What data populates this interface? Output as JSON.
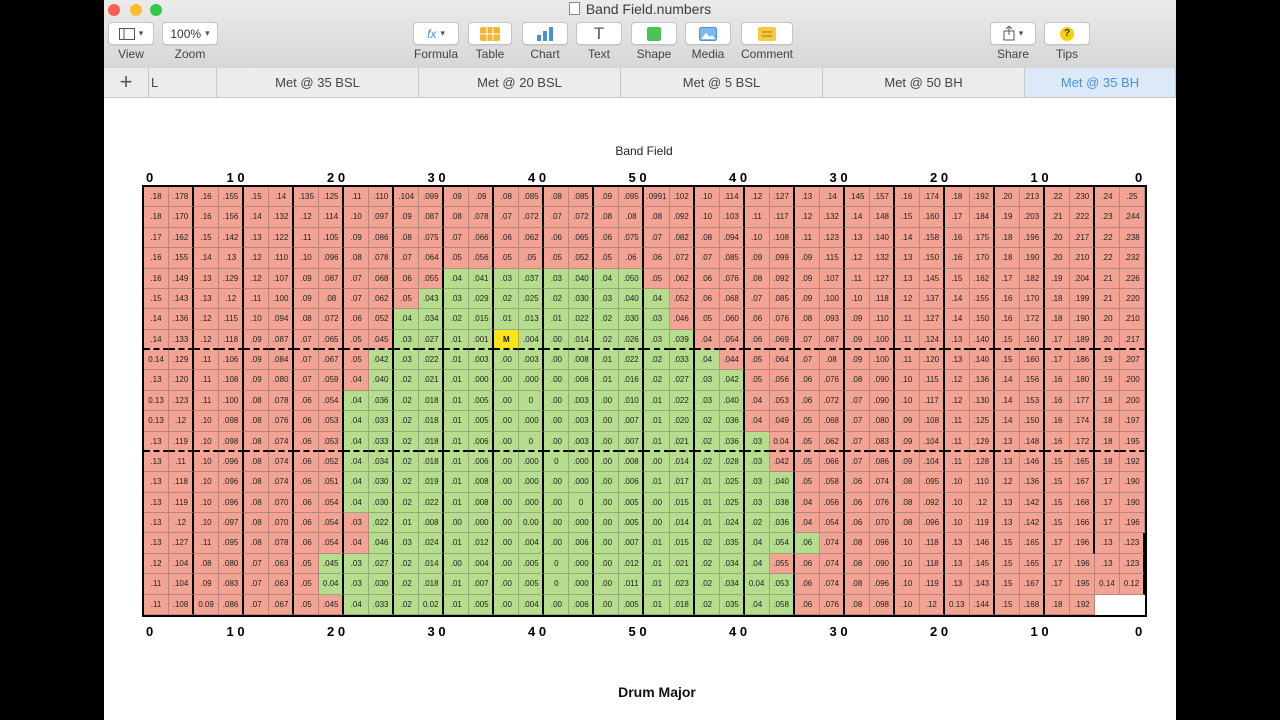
{
  "window": {
    "title": "Band Field.numbers"
  },
  "toolbar": {
    "view": {
      "label": "View",
      "icon": "sidebar-icon"
    },
    "zoom": {
      "label": "Zoom",
      "value": "100%"
    },
    "formula": {
      "label": "Formula",
      "glyph": "fx"
    },
    "table": {
      "label": "Table",
      "icon": "table-icon"
    },
    "chart": {
      "label": "Chart",
      "icon": "chart-icon"
    },
    "text": {
      "label": "Text",
      "glyph": "T"
    },
    "shape": {
      "label": "Shape",
      "icon": "shape-icon"
    },
    "media": {
      "label": "Media",
      "icon": "media-icon"
    },
    "comment": {
      "label": "Comment",
      "icon": "comment-icon"
    },
    "share": {
      "label": "Share",
      "icon": "share-icon"
    },
    "tips": {
      "label": "Tips",
      "glyph": "?"
    }
  },
  "tabs": [
    "L",
    "Met @ 35 BSL",
    "Met @ 20 BSL",
    "Met @ 5 BSL",
    "Met @ 50 BH",
    "Met @ 35 BH"
  ],
  "active_tab": 5,
  "field": {
    "title": "Band Field",
    "footer": "Drum Major",
    "yard_labels": [
      "0",
      "1 0",
      "2 0",
      "3 0",
      "4 0",
      "5 0",
      "4 0",
      "3 0",
      "2 0",
      "1 0",
      "0"
    ],
    "marker": "M",
    "rows": [
      [
        ".18",
        ".178",
        ".16",
        ".155",
        ".15",
        ".14",
        ".135",
        ".125",
        ".11",
        ".110",
        ".104",
        ".099",
        ".09",
        ".09",
        ".08",
        ".085",
        ".08",
        ".085",
        ".09",
        ".095",
        ".0991",
        ".102",
        ".10",
        ".114",
        ".12",
        ".127",
        ".13",
        ".14",
        ".145",
        ".157",
        ".16",
        ".174",
        ".18",
        ".192",
        ".20",
        ".213",
        ".22",
        ".230",
        ".24",
        ".25"
      ],
      [
        ".18",
        ".170",
        ".16",
        ".156",
        ".14",
        ".132",
        ".12",
        ".114",
        ".10",
        ".097",
        ".09",
        ".087",
        ".08",
        ".078",
        ".07",
        ".072",
        ".07",
        ".072",
        ".08",
        ".08",
        ".08",
        ".092",
        ".10",
        ".103",
        ".11",
        ".117",
        ".12",
        ".132",
        ".14",
        ".148",
        ".15",
        ".160",
        ".17",
        ".184",
        ".19",
        ".203",
        ".21",
        ".222",
        ".23",
        ".244"
      ],
      [
        ".17",
        ".162",
        ".15",
        ".142",
        ".13",
        ".122",
        ".11",
        ".105",
        ".09",
        ".086",
        ".08",
        ".075",
        ".07",
        ".066",
        ".06",
        ".062",
        ".06",
        ".065",
        ".06",
        ".075",
        ".07",
        ".082",
        ".08",
        ".094",
        ".10",
        ".108",
        ".11",
        ".123",
        ".13",
        ".140",
        ".14",
        ".158",
        ".16",
        ".175",
        ".18",
        ".196",
        ".20",
        ".217",
        ".22",
        ".238"
      ],
      [
        ".16",
        ".155",
        ".14",
        ".13",
        ".12",
        ".110",
        ".10",
        ".096",
        ".08",
        ".078",
        ".07",
        ".064",
        ".05",
        ".056",
        ".05",
        ".05",
        ".05",
        ".052",
        ".05",
        ".06",
        ".06",
        ".072",
        ".07",
        ".085",
        ".09",
        ".099",
        ".09",
        ".115",
        ".12",
        ".132",
        ".13",
        ".150",
        ".16",
        ".170",
        ".18",
        ".190",
        ".20",
        ".210",
        ".22",
        ".232"
      ],
      [
        ".16",
        ".149",
        ".13",
        ".129",
        ".12",
        ".107",
        ".09",
        ".087",
        ".07",
        ".068",
        ".06",
        ".055",
        ".04",
        ".041",
        ".03",
        ".037",
        ".03",
        ".040",
        ".04",
        ".050",
        ".05",
        ".062",
        ".06",
        ".076",
        ".08",
        ".092",
        ".09",
        ".107",
        ".11",
        ".127",
        ".13",
        ".145",
        ".15",
        ".162",
        ".17",
        ".182",
        ".19",
        ".204",
        ".21",
        ".226"
      ],
      [
        ".15",
        ".143",
        ".13",
        ".12",
        ".11",
        ".100",
        ".09",
        ".08",
        ".07",
        ".062",
        ".05",
        ".043",
        ".03",
        ".029",
        ".02",
        ".025",
        ".02",
        ".030",
        ".03",
        ".040",
        ".04",
        ".052",
        ".06",
        ".068",
        ".07",
        ".085",
        ".09",
        ".100",
        ".10",
        ".118",
        ".12",
        ".137",
        ".14",
        ".155",
        ".16",
        ".170",
        ".18",
        ".199",
        ".21",
        ".220"
      ],
      [
        ".14",
        ".136",
        ".12",
        ".115",
        ".10",
        ".094",
        ".08",
        ".072",
        ".06",
        ".052",
        ".04",
        ".034",
        ".02",
        ".015",
        ".01",
        ".013",
        ".01",
        ".022",
        ".02",
        ".030",
        ".03",
        ".046",
        ".05",
        ".060",
        ".06",
        ".076",
        ".08",
        ".093",
        ".09",
        ".110",
        ".11",
        ".127",
        ".14",
        ".150",
        ".16",
        ".172",
        ".18",
        ".190",
        ".20",
        ".210"
      ],
      [
        ".14",
        ".133",
        ".12",
        ".118",
        ".09",
        ".087",
        ".07",
        ".065",
        ".05",
        ".045",
        ".03",
        ".027",
        ".01",
        ".001",
        "M",
        ".004",
        ".00",
        ".014",
        ".02",
        ".026",
        ".03",
        ".039",
        ".04",
        ".054",
        ".06",
        ".069",
        ".07",
        ".087",
        ".09",
        ".100",
        ".11",
        ".124",
        ".13",
        ".140",
        ".15",
        ".160",
        ".17",
        ".189",
        ".20",
        ".217"
      ],
      [
        "0.14",
        ".129",
        ".11",
        ".106",
        ".09",
        ".084",
        ".07",
        ".067",
        ".05",
        ".042",
        ".03",
        ".022",
        ".01",
        ".003",
        ".00",
        ".003",
        ".00",
        ".008",
        ".01",
        ".022",
        ".02",
        ".033",
        ".04",
        ".044",
        ".05",
        ".064",
        ".07",
        ".08",
        ".09",
        ".100",
        ".11",
        ".120",
        ".13",
        ".140",
        ".15",
        ".160",
        ".17",
        ".186",
        ".19",
        ".207"
      ],
      [
        ".13",
        ".120",
        ".11",
        ".108",
        ".09",
        ".080",
        ".07",
        ".059",
        ".04",
        ".040",
        ".02",
        ".021",
        ".01",
        ".000",
        ".00",
        ".000",
        ".00",
        ".006",
        ".01",
        ".016",
        ".02",
        ".027",
        ".03",
        ".042",
        ".05",
        ".056",
        ".06",
        ".076",
        ".08",
        ".090",
        ".10",
        ".115",
        ".12",
        ".136",
        ".14",
        ".156",
        ".16",
        ".180",
        ".19",
        ".200"
      ],
      [
        "0.13",
        ".123",
        ".11",
        ".100",
        ".08",
        ".078",
        ".06",
        ".054",
        ".04",
        ".036",
        ".02",
        ".018",
        ".01",
        ".005",
        ".00",
        "0",
        ".00",
        ".003",
        ".00",
        ".010",
        ".01",
        ".022",
        ".03",
        ".040",
        ".04",
        ".053",
        ".06",
        ".072",
        ".07",
        ".090",
        ".10",
        ".117",
        ".12",
        ".130",
        ".14",
        ".153",
        ".16",
        ".177",
        ".18",
        ".200"
      ],
      [
        "0.13",
        ".12",
        ".10",
        ".098",
        ".08",
        ".076",
        ".06",
        ".053",
        ".04",
        ".033",
        ".02",
        ".018",
        ".01",
        ".005",
        ".00",
        ".000",
        ".00",
        ".003",
        ".00",
        ".007",
        ".01",
        ".020",
        ".02",
        ".036",
        ".04",
        ".049",
        ".05",
        ".068",
        ".07",
        ".080",
        ".09",
        ".108",
        ".11",
        ".125",
        ".14",
        ".150",
        ".16",
        ".174",
        ".18",
        ".197"
      ],
      [
        ".13",
        ".119",
        ".10",
        ".098",
        ".08",
        ".074",
        ".06",
        ".053",
        ".04",
        ".033",
        ".02",
        ".018",
        ".01",
        ".006",
        ".00",
        "0",
        ".00",
        ".003",
        ".00",
        ".007",
        ".01",
        ".021",
        ".02",
        ".036",
        ".03",
        "0.04",
        ".05",
        ".062",
        ".07",
        ".083",
        ".09",
        ".104",
        ".11",
        ".129",
        ".13",
        ".148",
        ".16",
        ".172",
        ".18",
        ".195"
      ],
      [
        ".13",
        ".11",
        ".10",
        ".096",
        ".08",
        ".074",
        ".06",
        ".052",
        ".04",
        ".034",
        ".02",
        ".018",
        ".01",
        ".006",
        ".00",
        ".000",
        "0",
        ".000",
        ".00",
        ".008",
        ".00",
        ".014",
        ".02",
        ".028",
        ".03",
        ".042",
        ".05",
        ".066",
        ".07",
        ".086",
        ".09",
        ".104",
        ".11",
        ".128",
        ".13",
        ".146",
        ".15",
        ".165",
        ".18",
        ".192"
      ],
      [
        ".13",
        ".118",
        ".10",
        ".096",
        ".08",
        ".074",
        ".06",
        ".051",
        ".04",
        ".030",
        ".02",
        ".019",
        ".01",
        ".008",
        ".00",
        ".000",
        ".00",
        ".000",
        ".00",
        ".006",
        ".01",
        ".017",
        ".01",
        ".025",
        ".03",
        ".040",
        ".05",
        ".058",
        ".06",
        ".074",
        ".08",
        ".095",
        ".10",
        ".110",
        ".12",
        ".136",
        ".15",
        ".167",
        ".17",
        ".190"
      ],
      [
        ".13",
        ".119",
        ".10",
        ".096",
        ".08",
        ".070",
        ".06",
        ".054",
        ".04",
        ".030",
        ".02",
        ".022",
        ".01",
        ".008",
        ".00",
        ".000",
        ".00",
        "0",
        ".00",
        ".005",
        ".00",
        ".015",
        ".01",
        ".025",
        ".03",
        ".038",
        ".04",
        ".056",
        ".06",
        ".076",
        ".08",
        ".092",
        ".10",
        ".12",
        ".13",
        ".142",
        ".15",
        ".168",
        ".17",
        ".190"
      ],
      [
        ".13",
        ".12",
        ".10",
        ".097",
        ".08",
        ".070",
        ".06",
        ".054",
        ".03",
        ".022",
        ".01",
        ".008",
        ".00",
        ".000",
        ".00",
        "0.00",
        ".00",
        ".000",
        ".00",
        ".005",
        ".00",
        ".014",
        ".01",
        ".024",
        ".02",
        ".036",
        ".04",
        ".054",
        ".06",
        ".070",
        ".08",
        ".096",
        ".10",
        ".119",
        ".13",
        ".142",
        ".15",
        ".166",
        ".17",
        ".196"
      ],
      [
        ".13",
        ".127",
        ".11",
        ".095",
        ".08",
        ".078",
        ".06",
        ".054",
        ".04",
        ".046",
        ".03",
        ".024",
        ".01",
        ".012",
        ".00",
        ".004",
        ".00",
        ".006",
        ".00",
        ".007",
        ".01",
        ".015",
        ".02",
        ".035",
        ".04",
        ".054",
        ".06",
        ".074",
        ".08",
        ".096",
        ".10",
        ".118",
        ".13",
        ".146",
        ".15",
        ".165",
        ".17",
        ".196"
      ],
      [
        ".13",
        ".123",
        ".12",
        ".104",
        ".08",
        ".080",
        ".07",
        ".063",
        ".05",
        ".045",
        ".03",
        ".027",
        ".02",
        ".014",
        ".00",
        ".004",
        ".00",
        ".005",
        "0",
        ".000",
        ".00",
        ".012",
        ".01",
        ".021",
        ".02",
        ".034",
        ".04",
        ".055",
        ".06",
        ".074",
        ".08",
        ".090",
        ".10",
        ".118",
        ".13",
        ".145",
        ".15",
        ".165",
        ".17",
        ".196"
      ],
      [
        ".13",
        ".123",
        ".11",
        ".104",
        ".09",
        ".083",
        ".07",
        ".063",
        ".05",
        "0.04",
        ".03",
        ".030",
        ".02",
        ".018",
        ".01",
        ".007",
        ".00",
        ".005",
        "0",
        ".000",
        ".00",
        ".011",
        ".01",
        ".023",
        ".02",
        ".034",
        "0.04",
        ".053",
        ".06",
        ".074",
        ".08",
        ".096",
        ".10",
        ".119",
        ".13",
        ".143",
        ".15",
        ".167",
        ".17",
        ".195"
      ],
      [
        "0.14",
        "0.12",
        ".11",
        ".108",
        "0.09",
        ".086",
        ".07",
        ".067",
        ".05",
        ".045",
        ".04",
        ".033",
        ".02",
        "0.02",
        ".01",
        ".005",
        ".00",
        ".004",
        ".00",
        ".006",
        ".00",
        ".005",
        ".01",
        ".018",
        ".02",
        ".035",
        ".04",
        ".058",
        ".06",
        ".076",
        ".08",
        ".098",
        ".10",
        ".12",
        "0.13",
        ".144",
        ".15",
        ".168",
        ".18",
        ".192"
      ]
    ],
    "green": [
      [],
      [],
      [],
      [],
      [
        12,
        13,
        14,
        15,
        16,
        17,
        18,
        19
      ],
      [
        11,
        12,
        13,
        14,
        15,
        16,
        17,
        18,
        19,
        20
      ],
      [
        10,
        11,
        12,
        13,
        14,
        15,
        16,
        17,
        18,
        19,
        20
      ],
      [
        10,
        11,
        12,
        13,
        14,
        15,
        16,
        17,
        18,
        19,
        20,
        21
      ],
      [
        9,
        10,
        11,
        12,
        13,
        14,
        15,
        16,
        17,
        18,
        19,
        20,
        21,
        22
      ],
      [
        9,
        10,
        11,
        12,
        13,
        14,
        15,
        16,
        17,
        18,
        19,
        20,
        21,
        22,
        23
      ],
      [
        8,
        9,
        10,
        11,
        12,
        13,
        14,
        15,
        16,
        17,
        18,
        19,
        20,
        21,
        22,
        23
      ],
      [
        8,
        9,
        10,
        11,
        12,
        13,
        14,
        15,
        16,
        17,
        18,
        19,
        20,
        21,
        22,
        23
      ],
      [
        8,
        9,
        10,
        11,
        12,
        13,
        14,
        15,
        16,
        17,
        18,
        19,
        20,
        21,
        22,
        23,
        24
      ],
      [
        8,
        9,
        10,
        11,
        12,
        13,
        14,
        15,
        16,
        17,
        18,
        19,
        20,
        21,
        22,
        23,
        24
      ],
      [
        8,
        9,
        10,
        11,
        12,
        13,
        14,
        15,
        16,
        17,
        18,
        19,
        20,
        21,
        22,
        23,
        24,
        25
      ],
      [
        8,
        9,
        10,
        11,
        12,
        13,
        14,
        15,
        16,
        17,
        18,
        19,
        20,
        21,
        22,
        23,
        24,
        25
      ],
      [
        9,
        10,
        11,
        12,
        13,
        14,
        15,
        16,
        17,
        18,
        19,
        20,
        21,
        22,
        23,
        24,
        25
      ],
      [
        9,
        10,
        11,
        12,
        13,
        14,
        15,
        16,
        17,
        18,
        19,
        20,
        21,
        22,
        23,
        24,
        25,
        26
      ],
      [
        9,
        10,
        11,
        12,
        13,
        14,
        15,
        16,
        17,
        18,
        19,
        20,
        21,
        22,
        23,
        24,
        25,
        26
      ],
      [
        9,
        10,
        11,
        12,
        13,
        14,
        15,
        16,
        17,
        18,
        19,
        20,
        21,
        22,
        23,
        24,
        25,
        26,
        27
      ],
      [
        10,
        11,
        12,
        13,
        14,
        15,
        16,
        17,
        18,
        19,
        20,
        21,
        22,
        23,
        24,
        25,
        26,
        27
      ]
    ],
    "colors": {
      "red": "#f3a394",
      "green": "#b5dd8d",
      "marker": "#f9e31b"
    }
  }
}
